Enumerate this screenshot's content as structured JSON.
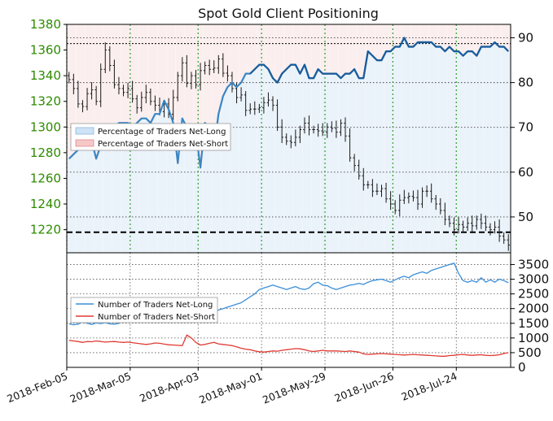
{
  "chart_data": {
    "type": "line",
    "title": "Spot Gold Client Positioning",
    "x_dates": [
      "2018-Feb-05",
      "2018-Mar-05",
      "2018-Apr-03",
      "2018-May-01",
      "2018-May-29",
      "2018-Jun-26",
      "2018-Jul-24"
    ],
    "upper": {
      "price_axis": {
        "ticks": [
          1220,
          1240,
          1260,
          1280,
          1300,
          1320,
          1340,
          1360,
          1380
        ],
        "ylim": [
          1202,
          1380
        ],
        "color": "#2e8b00"
      },
      "pct_axis": {
        "ticks": [
          50,
          60,
          70,
          80,
          90
        ],
        "ylim": [
          42,
          93
        ]
      },
      "reference_lines": [
        1218,
        1365
      ],
      "legend": {
        "placement": "center-left",
        "entries": [
          "Percentage of Traders Net-Long",
          "Percentage of Traders Net-Short"
        ]
      },
      "pct_long_series": {
        "name": "Percentage of Traders Net-Long",
        "color": "#3a86c4",
        "values": [
          63,
          64,
          65,
          66,
          67,
          67,
          63,
          66,
          68,
          69,
          70,
          71,
          71,
          71,
          70,
          71,
          72,
          72,
          71,
          73,
          73,
          76,
          74,
          71,
          62,
          72,
          70,
          69,
          69,
          61,
          71,
          70,
          65,
          73,
          77,
          79,
          80,
          79,
          80,
          82,
          82,
          83,
          84,
          84,
          83,
          81,
          80,
          82,
          83,
          84,
          84,
          82,
          84,
          81,
          81,
          83,
          82,
          82,
          82,
          82,
          81,
          82,
          82,
          83,
          81,
          81,
          87,
          86,
          85,
          85,
          87,
          87,
          88,
          88,
          90,
          88,
          88,
          89,
          89,
          89,
          89,
          88,
          88,
          87,
          88,
          87,
          87,
          86,
          87,
          87,
          86,
          88,
          88,
          88,
          89,
          88,
          88,
          87
        ]
      },
      "ohlc_color": "#1a1a1a",
      "price_close": [
        1337,
        1330,
        1318,
        1316,
        1326,
        1329,
        1320,
        1345,
        1360,
        1348,
        1333,
        1330,
        1327,
        1330,
        1322,
        1315,
        1323,
        1327,
        1320,
        1317,
        1312,
        1318,
        1310,
        1323,
        1340,
        1350,
        1334,
        1340,
        1333,
        1344,
        1348,
        1345,
        1346,
        1353,
        1342,
        1340,
        1330,
        1323,
        1325,
        1313,
        1314,
        1314,
        1315,
        1319,
        1321,
        1317,
        1300,
        1292,
        1289,
        1288,
        1292,
        1298,
        1303,
        1298,
        1298,
        1297,
        1296,
        1300,
        1299,
        1296,
        1303,
        1293,
        1276,
        1270,
        1262,
        1255,
        1255,
        1250,
        1250,
        1252,
        1244,
        1240,
        1235,
        1243,
        1245,
        1246,
        1245,
        1240,
        1250,
        1250,
        1244,
        1240,
        1235,
        1228,
        1225,
        1220,
        1224,
        1222,
        1225,
        1223,
        1228,
        1225,
        1222,
        1220,
        1222,
        1215,
        1212,
        1208
      ]
    },
    "lower": {
      "ticks": [
        0,
        500,
        1000,
        1500,
        2000,
        2500,
        3000,
        3500
      ],
      "ylim": [
        0,
        3900
      ],
      "legend": {
        "placement": "center-left"
      },
      "series": [
        {
          "name": "Number of Traders Net-Long",
          "color": "#3b8fd9",
          "values": [
            1480,
            1450,
            1470,
            1550,
            1500,
            1460,
            1510,
            1490,
            1520,
            1480,
            1470,
            1500,
            1580,
            1560,
            1530,
            1600,
            1590,
            1620,
            1650,
            1700,
            1640,
            1580,
            1550,
            1600,
            1620,
            1650,
            1700,
            1750,
            1720,
            1780,
            1800,
            1850,
            1900,
            1950,
            2000,
            2050,
            2100,
            2150,
            2200,
            2300,
            2400,
            2500,
            2650,
            2700,
            2750,
            2800,
            2750,
            2700,
            2650,
            2700,
            2750,
            2680,
            2650,
            2700,
            2850,
            2900,
            2800,
            2780,
            2700,
            2650,
            2700,
            2750,
            2800,
            2820,
            2860,
            2820,
            2900,
            2950,
            2980,
            3000,
            2950,
            2900,
            2980,
            3050,
            3100,
            3050,
            3150,
            3200,
            3250,
            3200,
            3300,
            3350,
            3400,
            3450,
            3500,
            3550,
            3200,
            2950,
            2900,
            2950,
            2900,
            3050,
            2900,
            2980,
            2900,
            3000,
            2950,
            2880
          ]
        },
        {
          "name": "Number of Traders Net-Short",
          "color": "#e03b32",
          "values": [
            920,
            900,
            880,
            850,
            880,
            870,
            900,
            880,
            860,
            870,
            880,
            860,
            850,
            860,
            840,
            820,
            800,
            780,
            800,
            830,
            820,
            790,
            770,
            760,
            750,
            740,
            1100,
            1000,
            850,
            760,
            780,
            820,
            850,
            800,
            780,
            760,
            740,
            700,
            650,
            620,
            600,
            560,
            530,
            520,
            540,
            560,
            550,
            580,
            600,
            620,
            640,
            630,
            600,
            560,
            540,
            560,
            580,
            560,
            560,
            560,
            550,
            540,
            560,
            540,
            520,
            460,
            440,
            450,
            460,
            470,
            460,
            450,
            440,
            430,
            420,
            430,
            440,
            430,
            420,
            410,
            400,
            390,
            380,
            380,
            400,
            410,
            430,
            440,
            420,
            410,
            420,
            430,
            410,
            400,
            410,
            430,
            470,
            500
          ]
        }
      ]
    }
  }
}
